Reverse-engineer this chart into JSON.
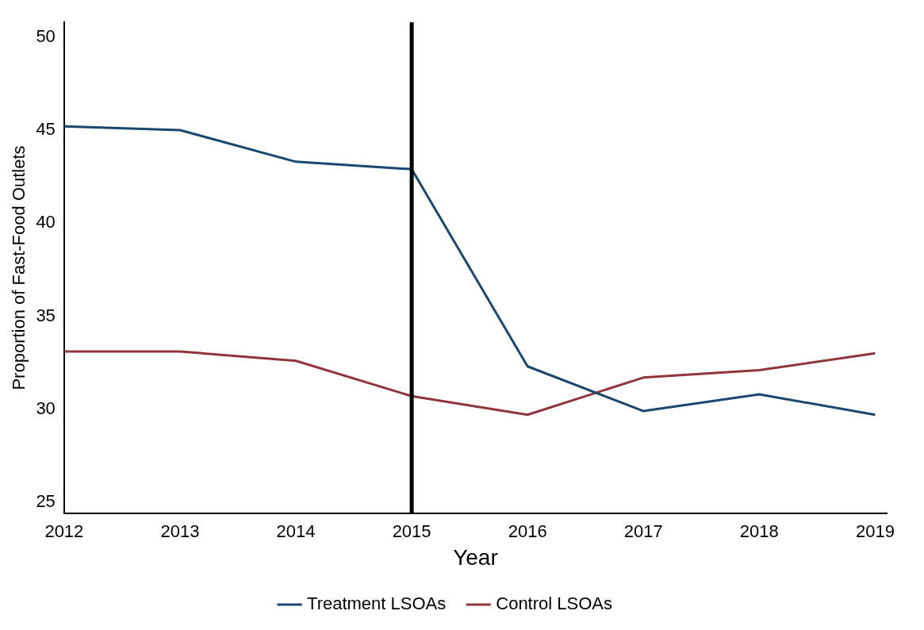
{
  "chart_data": {
    "type": "line",
    "xlabel": "Year",
    "ylabel": "Proportion of Fast-Food Outlets",
    "x": [
      2012,
      2013,
      2014,
      2015,
      2016,
      2017,
      2018,
      2019
    ],
    "series": [
      {
        "name": "Treatment LSOAs",
        "color": "#1a476f",
        "values": [
          45.2,
          45.0,
          43.3,
          42.9,
          32.3,
          29.9,
          30.8,
          29.7
        ]
      },
      {
        "name": "Control LSOAs",
        "color": "#90353b",
        "values": [
          33.1,
          33.1,
          32.6,
          30.7,
          29.7,
          31.7,
          32.1,
          33.0
        ]
      }
    ],
    "xlim": [
      2012,
      2019.1
    ],
    "xticks": [
      2012,
      2013,
      2014,
      2015,
      2016,
      2017,
      2018,
      2019
    ],
    "ylim": [
      24.4,
      50.8
    ],
    "yticks": [
      25,
      30,
      35,
      40,
      45,
      50
    ],
    "ref_lines": [
      {
        "axis": "x",
        "value": 2015,
        "color": "#000000"
      }
    ],
    "grid": false,
    "legend": "bottom",
    "marker": "none",
    "line_style": "solid"
  }
}
